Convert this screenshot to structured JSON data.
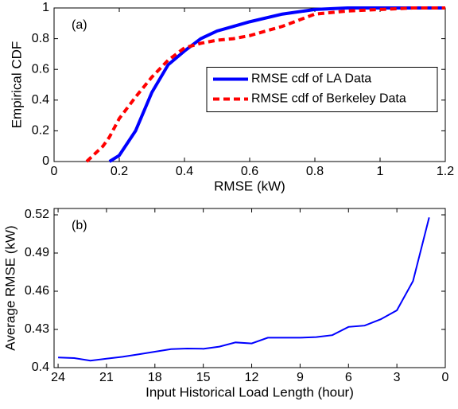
{
  "chart_data": [
    {
      "type": "line",
      "annotation": "(a)",
      "xlabel": "RMSE (kW)",
      "ylabel": "Empirical CDF",
      "x": [
        0.1,
        0.15,
        0.17,
        0.2,
        0.25,
        0.3,
        0.35,
        0.4,
        0.45,
        0.5,
        0.55,
        0.6,
        0.7,
        0.8,
        0.9,
        1.0,
        1.1,
        1.2
      ],
      "series": [
        {
          "name": "RMSE cdf of LA Data",
          "color": "#0000ff",
          "dashed": false,
          "values": [
            null,
            null,
            0,
            0.04,
            0.2,
            0.45,
            0.63,
            0.72,
            0.8,
            0.85,
            0.88,
            0.91,
            0.96,
            0.99,
            1,
            1,
            1,
            1
          ]
        },
        {
          "name": "RMSE cdf of Berkeley Data",
          "color": "#ff0000",
          "dashed": true,
          "values": [
            0,
            0.1,
            0.16,
            0.28,
            0.42,
            0.55,
            0.66,
            0.74,
            0.77,
            0.79,
            0.8,
            0.82,
            0.88,
            0.96,
            0.98,
            0.99,
            1,
            1
          ]
        }
      ],
      "xlim": [
        0,
        1.2
      ],
      "xticks": [
        0,
        0.2,
        0.4,
        0.6,
        0.8,
        1,
        1.2
      ],
      "ylim": [
        0,
        1
      ],
      "yticks": [
        0,
        0.2,
        0.4,
        0.6,
        0.8,
        1
      ],
      "legend": "center right",
      "grid": false
    },
    {
      "type": "line",
      "annotation": "(b)",
      "xlabel": "Input Historical Load Length (hour)",
      "ylabel": "Average RMSE (kW)",
      "x": [
        24,
        23,
        22,
        21,
        20,
        19,
        18,
        17,
        16,
        15,
        14,
        13,
        12,
        11,
        10,
        9,
        8,
        7,
        6,
        5,
        4,
        3,
        2,
        1
      ],
      "values": [
        0.408,
        0.4075,
        0.4055,
        0.407,
        0.4085,
        0.4105,
        0.4125,
        0.4145,
        0.415,
        0.4148,
        0.4165,
        0.4198,
        0.419,
        0.4235,
        0.4235,
        0.4235,
        0.424,
        0.4255,
        0.432,
        0.433,
        0.438,
        0.445,
        0.468,
        0.518
      ],
      "color": "#0000ff",
      "xlim": [
        24.25,
        0
      ],
      "xticks": [
        24,
        21,
        18,
        15,
        12,
        9,
        6,
        3,
        0
      ],
      "ylim": [
        0.4,
        0.525
      ],
      "yticks": [
        0.4,
        0.43,
        0.46,
        0.49,
        0.52
      ],
      "grid": false
    }
  ]
}
